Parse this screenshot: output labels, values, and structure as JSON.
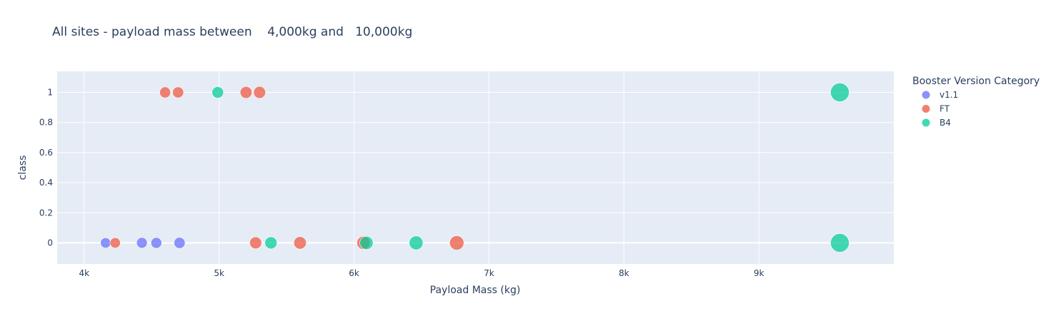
{
  "chart_data": {
    "type": "scatter",
    "title": "All sites - payload mass between    4,000kg and   10,000kg",
    "xlabel": "Payload Mass (kg)",
    "ylabel": "class",
    "xlim": [
      3800,
      10000
    ],
    "ylim": [
      -0.14,
      1.14
    ],
    "x_ticks": [
      4000,
      5000,
      6000,
      7000,
      8000,
      9000
    ],
    "x_tick_labels": [
      "4k",
      "5k",
      "6k",
      "7k",
      "8k",
      "9k"
    ],
    "y_ticks": [
      0,
      0.2,
      0.4,
      0.6,
      0.8,
      1
    ],
    "y_tick_labels": [
      "0",
      "0.2",
      "0.4",
      "0.6",
      "0.8",
      "1"
    ],
    "grid": true,
    "plot_background": "#e5ecf6",
    "legend_title": "Booster Version Category",
    "legend_position": "right",
    "series": [
      {
        "name": "v1.1",
        "color": "#636efa",
        "points": [
          {
            "x": 4159,
            "y": 0
          },
          {
            "x": 4428,
            "y": 0
          },
          {
            "x": 4535,
            "y": 0
          },
          {
            "x": 4707,
            "y": 0
          }
        ]
      },
      {
        "name": "FT",
        "color": "#ef553b",
        "points": [
          {
            "x": 4600,
            "y": 1
          },
          {
            "x": 4696,
            "y": 1
          },
          {
            "x": 5200,
            "y": 1
          },
          {
            "x": 5300,
            "y": 1
          },
          {
            "x": 4230,
            "y": 0
          },
          {
            "x": 5271,
            "y": 0
          },
          {
            "x": 5600,
            "y": 0
          },
          {
            "x": 6070,
            "y": 0
          },
          {
            "x": 6761,
            "y": 0
          }
        ]
      },
      {
        "name": "B4",
        "color": "#00cc96",
        "points": [
          {
            "x": 4990,
            "y": 1
          },
          {
            "x": 5384,
            "y": 0
          },
          {
            "x": 6092,
            "y": 0
          },
          {
            "x": 6460,
            "y": 0
          },
          {
            "x": 9600,
            "y": 1
          },
          {
            "x": 9600,
            "y": 0
          }
        ]
      }
    ]
  }
}
